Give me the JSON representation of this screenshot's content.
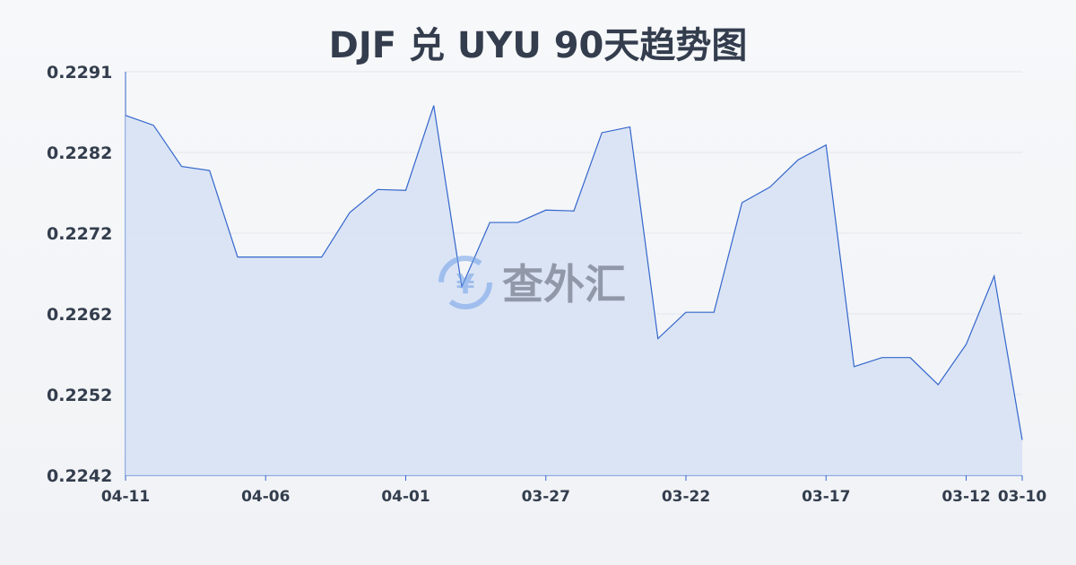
{
  "chart_data": {
    "type": "area",
    "title": "DJF 兑 UYU 90天趋势图",
    "xlabel": "",
    "ylabel": "",
    "ylim": [
      0.2242,
      0.2291
    ],
    "yticks": [
      "0.2291",
      "0.2282",
      "0.2272",
      "0.2262",
      "0.2252",
      "0.2242"
    ],
    "xticks": [
      "04-11",
      "04-06",
      "04-01",
      "03-27",
      "03-22",
      "03-17",
      "03-12",
      "03-10"
    ],
    "x": [
      "04-11",
      "04-10",
      "04-09",
      "04-08",
      "04-07",
      "04-06",
      "04-05",
      "04-04",
      "04-03",
      "04-02",
      "04-01",
      "03-31",
      "03-30",
      "03-29",
      "03-28",
      "03-27",
      "03-26",
      "03-25",
      "03-24",
      "03-23",
      "03-22",
      "03-21",
      "03-20",
      "03-19",
      "03-18",
      "03-17",
      "03-16",
      "03-15",
      "03-14",
      "03-13",
      "03-12",
      "03-11",
      "03-10"
    ],
    "values": [
      0.22857,
      0.22845,
      0.22795,
      0.2279,
      0.22685,
      0.22685,
      0.22685,
      0.22685,
      0.22739,
      0.22767,
      0.22766,
      0.22869,
      0.22649,
      0.22727,
      0.22727,
      0.22742,
      0.22741,
      0.22836,
      0.22843,
      0.22586,
      0.22618,
      0.22618,
      0.22751,
      0.2277,
      0.22803,
      0.22821,
      0.22552,
      0.22563,
      0.22563,
      0.2253,
      0.22579,
      0.22662,
      0.22463
    ],
    "grid": true,
    "line_color": "#3366cc",
    "fill_color": "#d6e0f5"
  },
  "watermark": "查外汇"
}
